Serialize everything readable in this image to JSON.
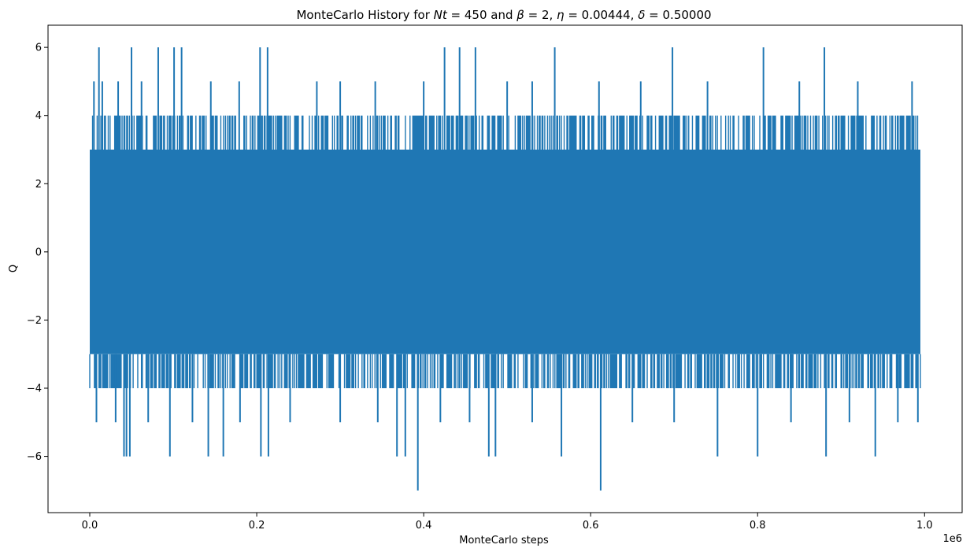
{
  "chart_data": {
    "type": "line",
    "title": "MonteCarlo History for Nt = 450 and  β = 2, η = 0.00444, δ = 0.50000",
    "title_parts": {
      "prefix": "MonteCarlo History for ",
      "var_nt": "Nt",
      "eq1": " = 450 and  ",
      "var_beta": "β",
      "eq2": " = 2, ",
      "var_eta": "η",
      "eq3": " = 0.00444, ",
      "var_delta": "δ",
      "eq4": " = 0.50000"
    },
    "xlabel": "MonteCarlo steps",
    "ylabel": "Q",
    "x_offset_label": "1e6",
    "xlim": [
      -50000,
      1045000
    ],
    "ylim": [
      -7.65,
      6.65
    ],
    "xticks": [
      0,
      0.2,
      0.4,
      0.6,
      0.8,
      1.0
    ],
    "xtick_labels": [
      "0.0",
      "0.2",
      "0.4",
      "0.6",
      "0.8",
      "1.0"
    ],
    "yticks": [
      -6,
      -4,
      -2,
      0,
      2,
      4,
      6
    ],
    "ytick_labels": [
      "−6",
      "−4",
      "−2",
      "0",
      "2",
      "4",
      "6"
    ],
    "grid": false,
    "series": [
      {
        "color": "#1f77b4",
        "x_range": [
          0,
          995000
        ],
        "typical_range": [
          -3,
          3
        ],
        "common_extremes": [
          -4,
          4
        ],
        "rare_max": [
          {
            "x": 5000,
            "y": 5
          },
          {
            "x": 11000,
            "y": 6
          },
          {
            "x": 15000,
            "y": 5
          },
          {
            "x": 34000,
            "y": 5
          },
          {
            "x": 50000,
            "y": 6
          },
          {
            "x": 62000,
            "y": 5
          },
          {
            "x": 82000,
            "y": 6
          },
          {
            "x": 101000,
            "y": 6
          },
          {
            "x": 110000,
            "y": 6
          },
          {
            "x": 145000,
            "y": 5
          },
          {
            "x": 179000,
            "y": 5
          },
          {
            "x": 204000,
            "y": 6
          },
          {
            "x": 213000,
            "y": 6
          },
          {
            "x": 272000,
            "y": 5
          },
          {
            "x": 300000,
            "y": 5
          },
          {
            "x": 342000,
            "y": 5
          },
          {
            "x": 400000,
            "y": 5
          },
          {
            "x": 425000,
            "y": 6
          },
          {
            "x": 443000,
            "y": 6
          },
          {
            "x": 462000,
            "y": 6
          },
          {
            "x": 500000,
            "y": 5
          },
          {
            "x": 530000,
            "y": 5
          },
          {
            "x": 557000,
            "y": 6
          },
          {
            "x": 610000,
            "y": 5
          },
          {
            "x": 660000,
            "y": 5
          },
          {
            "x": 698000,
            "y": 6
          },
          {
            "x": 740000,
            "y": 5
          },
          {
            "x": 807000,
            "y": 6
          },
          {
            "x": 850000,
            "y": 5
          },
          {
            "x": 880000,
            "y": 6
          },
          {
            "x": 920000,
            "y": 5
          },
          {
            "x": 985000,
            "y": 5
          }
        ],
        "rare_min": [
          {
            "x": 8000,
            "y": -5
          },
          {
            "x": 31000,
            "y": -5
          },
          {
            "x": 41000,
            "y": -6
          },
          {
            "x": 44000,
            "y": -6
          },
          {
            "x": 48000,
            "y": -6
          },
          {
            "x": 70000,
            "y": -5
          },
          {
            "x": 96000,
            "y": -6
          },
          {
            "x": 123000,
            "y": -5
          },
          {
            "x": 142000,
            "y": -6
          },
          {
            "x": 160000,
            "y": -6
          },
          {
            "x": 180000,
            "y": -5
          },
          {
            "x": 205000,
            "y": -6
          },
          {
            "x": 214000,
            "y": -6
          },
          {
            "x": 240000,
            "y": -5
          },
          {
            "x": 300000,
            "y": -5
          },
          {
            "x": 345000,
            "y": -5
          },
          {
            "x": 368000,
            "y": -6
          },
          {
            "x": 378000,
            "y": -6
          },
          {
            "x": 393000,
            "y": -7
          },
          {
            "x": 420000,
            "y": -5
          },
          {
            "x": 455000,
            "y": -5
          },
          {
            "x": 478000,
            "y": -6
          },
          {
            "x": 486000,
            "y": -6
          },
          {
            "x": 530000,
            "y": -5
          },
          {
            "x": 565000,
            "y": -6
          },
          {
            "x": 612000,
            "y": -7
          },
          {
            "x": 650000,
            "y": -5
          },
          {
            "x": 700000,
            "y": -5
          },
          {
            "x": 752000,
            "y": -6
          },
          {
            "x": 800000,
            "y": -6
          },
          {
            "x": 840000,
            "y": -5
          },
          {
            "x": 882000,
            "y": -6
          },
          {
            "x": 910000,
            "y": -5
          },
          {
            "x": 941000,
            "y": -6
          },
          {
            "x": 968000,
            "y": -5
          },
          {
            "x": 992000,
            "y": -5
          }
        ]
      }
    ]
  }
}
